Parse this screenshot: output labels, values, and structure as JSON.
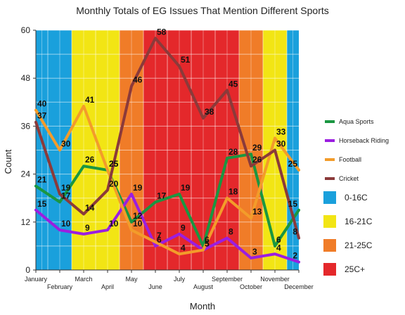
{
  "chart_data": {
    "type": "line",
    "title": "Monthly Totals of EG Issues That Mention Different Sports",
    "xlabel": "Month",
    "ylabel": "Count",
    "ylim": [
      0,
      60
    ],
    "yticks": [
      0,
      12,
      24,
      36,
      48,
      60
    ],
    "categories": [
      "January",
      "February",
      "March",
      "April",
      "May",
      "June",
      "July",
      "August",
      "September",
      "October",
      "November",
      "December"
    ],
    "series": [
      {
        "name": "Aqua Sports",
        "color": "#1a9641",
        "values": [
          21,
          17,
          26,
          25,
          12,
          17,
          19,
          6,
          28,
          29,
          6,
          15
        ]
      },
      {
        "name": "Horseback Riding",
        "color": "#9b1ee0",
        "values": [
          15,
          10,
          9,
          10,
          19,
          6,
          9,
          5,
          8,
          3,
          4,
          2
        ]
      },
      {
        "name": "Football",
        "color": "#f39c2a",
        "values": [
          40,
          30,
          41,
          25,
          10,
          7,
          4,
          5,
          18,
          13,
          33,
          25
        ]
      },
      {
        "name": "Cricket",
        "color": "#8b3a3a",
        "values": [
          37,
          19,
          14,
          20,
          46,
          58,
          51,
          38,
          45,
          26,
          30,
          8
        ]
      }
    ],
    "bands": [
      {
        "name": "0-16C",
        "color": "#1aa0dc",
        "months": [
          0,
          1,
          11
        ]
      },
      {
        "name": "16-21C",
        "color": "#f2e514",
        "months": [
          2,
          3,
          10
        ]
      },
      {
        "name": "21-25C",
        "color": "#f07c28",
        "months": [
          4,
          9
        ]
      },
      {
        "name": "25C+",
        "color": "#e4282b",
        "months": [
          5,
          6,
          7,
          8
        ]
      }
    ],
    "grid": true,
    "legend": "right"
  }
}
